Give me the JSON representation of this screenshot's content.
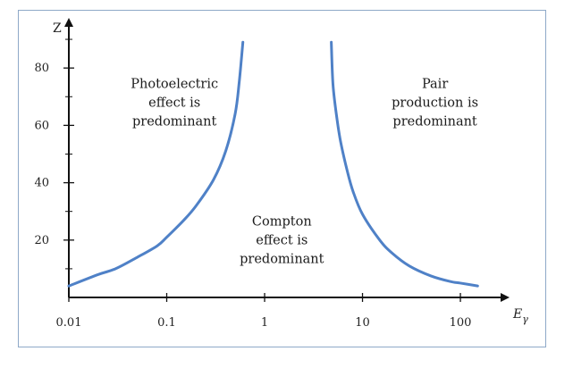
{
  "chart_data": {
    "type": "line",
    "xscale": "log",
    "xlim": [
      0.01,
      200
    ],
    "ylim": [
      0,
      95
    ],
    "xlabel": "E",
    "xlabel_sub": "γ",
    "ylabel": "Z",
    "x_ticks": [
      {
        "value": 0.01,
        "label": "0.01"
      },
      {
        "value": 0.1,
        "label": "0.1"
      },
      {
        "value": 1,
        "label": "1"
      },
      {
        "value": 10,
        "label": "10"
      },
      {
        "value": 100,
        "label": "100"
      }
    ],
    "y_ticks": [
      {
        "value": 20,
        "label": "20"
      },
      {
        "value": 40,
        "label": "40"
      },
      {
        "value": 60,
        "label": "60"
      },
      {
        "value": 80,
        "label": "80"
      }
    ],
    "y_minor_ticks": [
      10,
      30,
      50,
      70,
      90
    ],
    "line_color": "#4f81c7",
    "series": [
      {
        "x": [
          0.01,
          0.02,
          0.03,
          0.05,
          0.08,
          0.1,
          0.15,
          0.2,
          0.3,
          0.4,
          0.5,
          0.55,
          0.6
        ],
        "y": [
          4,
          8,
          10,
          14,
          18,
          21,
          27,
          32,
          41,
          51,
          64,
          75,
          89
        ]
      },
      {
        "x": [
          4.8,
          5,
          5.5,
          6,
          7,
          8,
          10,
          15,
          20,
          30,
          50,
          80,
          100,
          150
        ],
        "y": [
          89,
          74,
          62,
          54,
          44,
          37,
          29,
          20,
          15.5,
          11,
          7.5,
          5.5,
          5,
          4
        ]
      }
    ],
    "annotations": [
      {
        "x": 0.12,
        "y": 73,
        "lines": [
          "Photoelectric",
          "effect is",
          "predominant"
        ]
      },
      {
        "x": 1.5,
        "y": 25,
        "lines": [
          "Compton",
          "effect is",
          "predominant"
        ]
      },
      {
        "x": 55,
        "y": 73,
        "lines": [
          "Pair",
          "production is",
          "predominant"
        ]
      }
    ]
  }
}
